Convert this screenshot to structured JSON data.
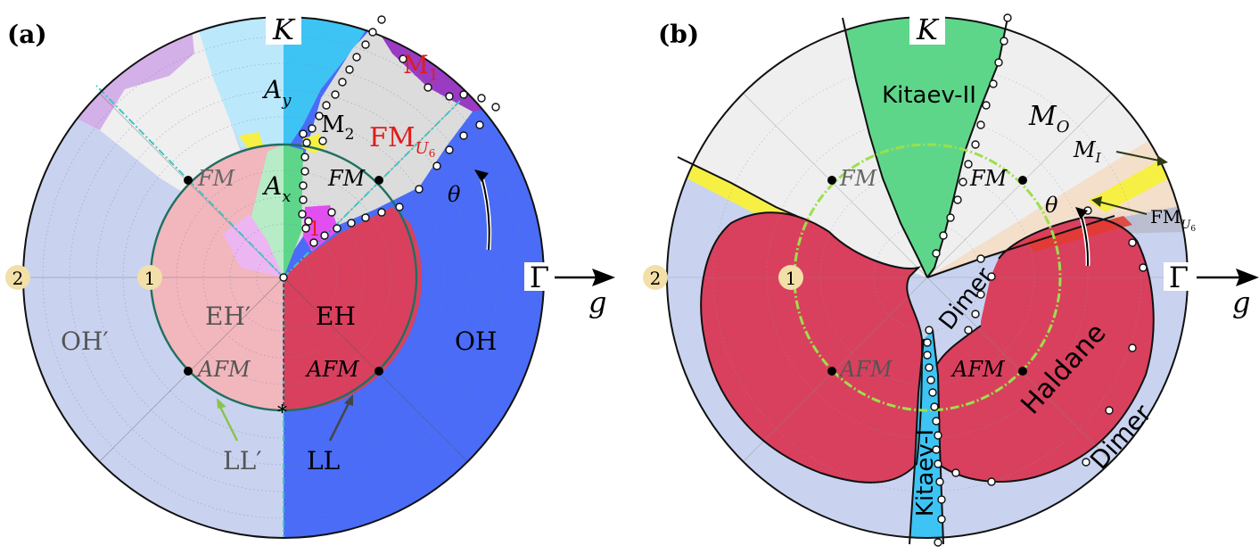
{
  "panel_a": {
    "label": "(a)",
    "top_label": "K",
    "right_label": "Γ",
    "axis_label": "g",
    "theta": "θ",
    "ring_labels": [
      "1",
      "2"
    ],
    "regions": {
      "Ay": "A",
      "Ay_sub": "y",
      "Ax": "A",
      "Ax_sub": "x",
      "M1": "M",
      "M1_sub": "1",
      "M2": "M",
      "M2_sub": "2",
      "FMU6": "FM",
      "FMU6_sub": "U",
      "FMU6_subsub": "6",
      "one": "1",
      "FM_left": "FM",
      "FM_right": "FM",
      "EH_prime": "EH′",
      "EH": "EH",
      "OH_prime": "OH′",
      "OH": "OH",
      "AFM_left": "AFM",
      "AFM_right": "AFM",
      "LL_prime": "LL′",
      "LL": "LL",
      "star": "*"
    }
  },
  "panel_b": {
    "label": "(b)",
    "top_label": "K",
    "right_label": "Γ",
    "axis_label": "g",
    "theta": "θ",
    "ring_labels": [
      "1",
      "2"
    ],
    "regions": {
      "kitaev2": "Kitaev-II",
      "kitaev1": "Kitaev-I",
      "MO": "M",
      "MO_sub": "O",
      "MI": "M",
      "MI_sub": "I",
      "FMU6": "FM",
      "FMU6_sub": "U",
      "FMU6_subsub": "6",
      "FM_left": "FM",
      "FM_right": "FM",
      "dimer_center": "Dimer",
      "dimer_right": "Dimer",
      "haldane": "Haldane",
      "AFM_left": "AFM",
      "AFM_right": "AFM"
    }
  },
  "colors": {
    "light_blue_bg": "#c9d3f0",
    "deep_blue": "#4a6cf7",
    "sky": "#3dc4f5",
    "pale_sky": "#bce8fb",
    "gray_region": "#dcdcdc",
    "light_gray": "#efefef",
    "crimson": "#d9405e",
    "pink": "#f2b6bd",
    "green": "#5ed68a",
    "pale_green": "#b7ecc7",
    "purple": "#9a3bc4",
    "lavender": "#d4b0e8",
    "magenta": "#e24ff0",
    "yellow": "#f6f044",
    "teal_circle": "#1e7060",
    "red_label": "#e01c1c",
    "ring_badge": "#f2e0a8"
  }
}
